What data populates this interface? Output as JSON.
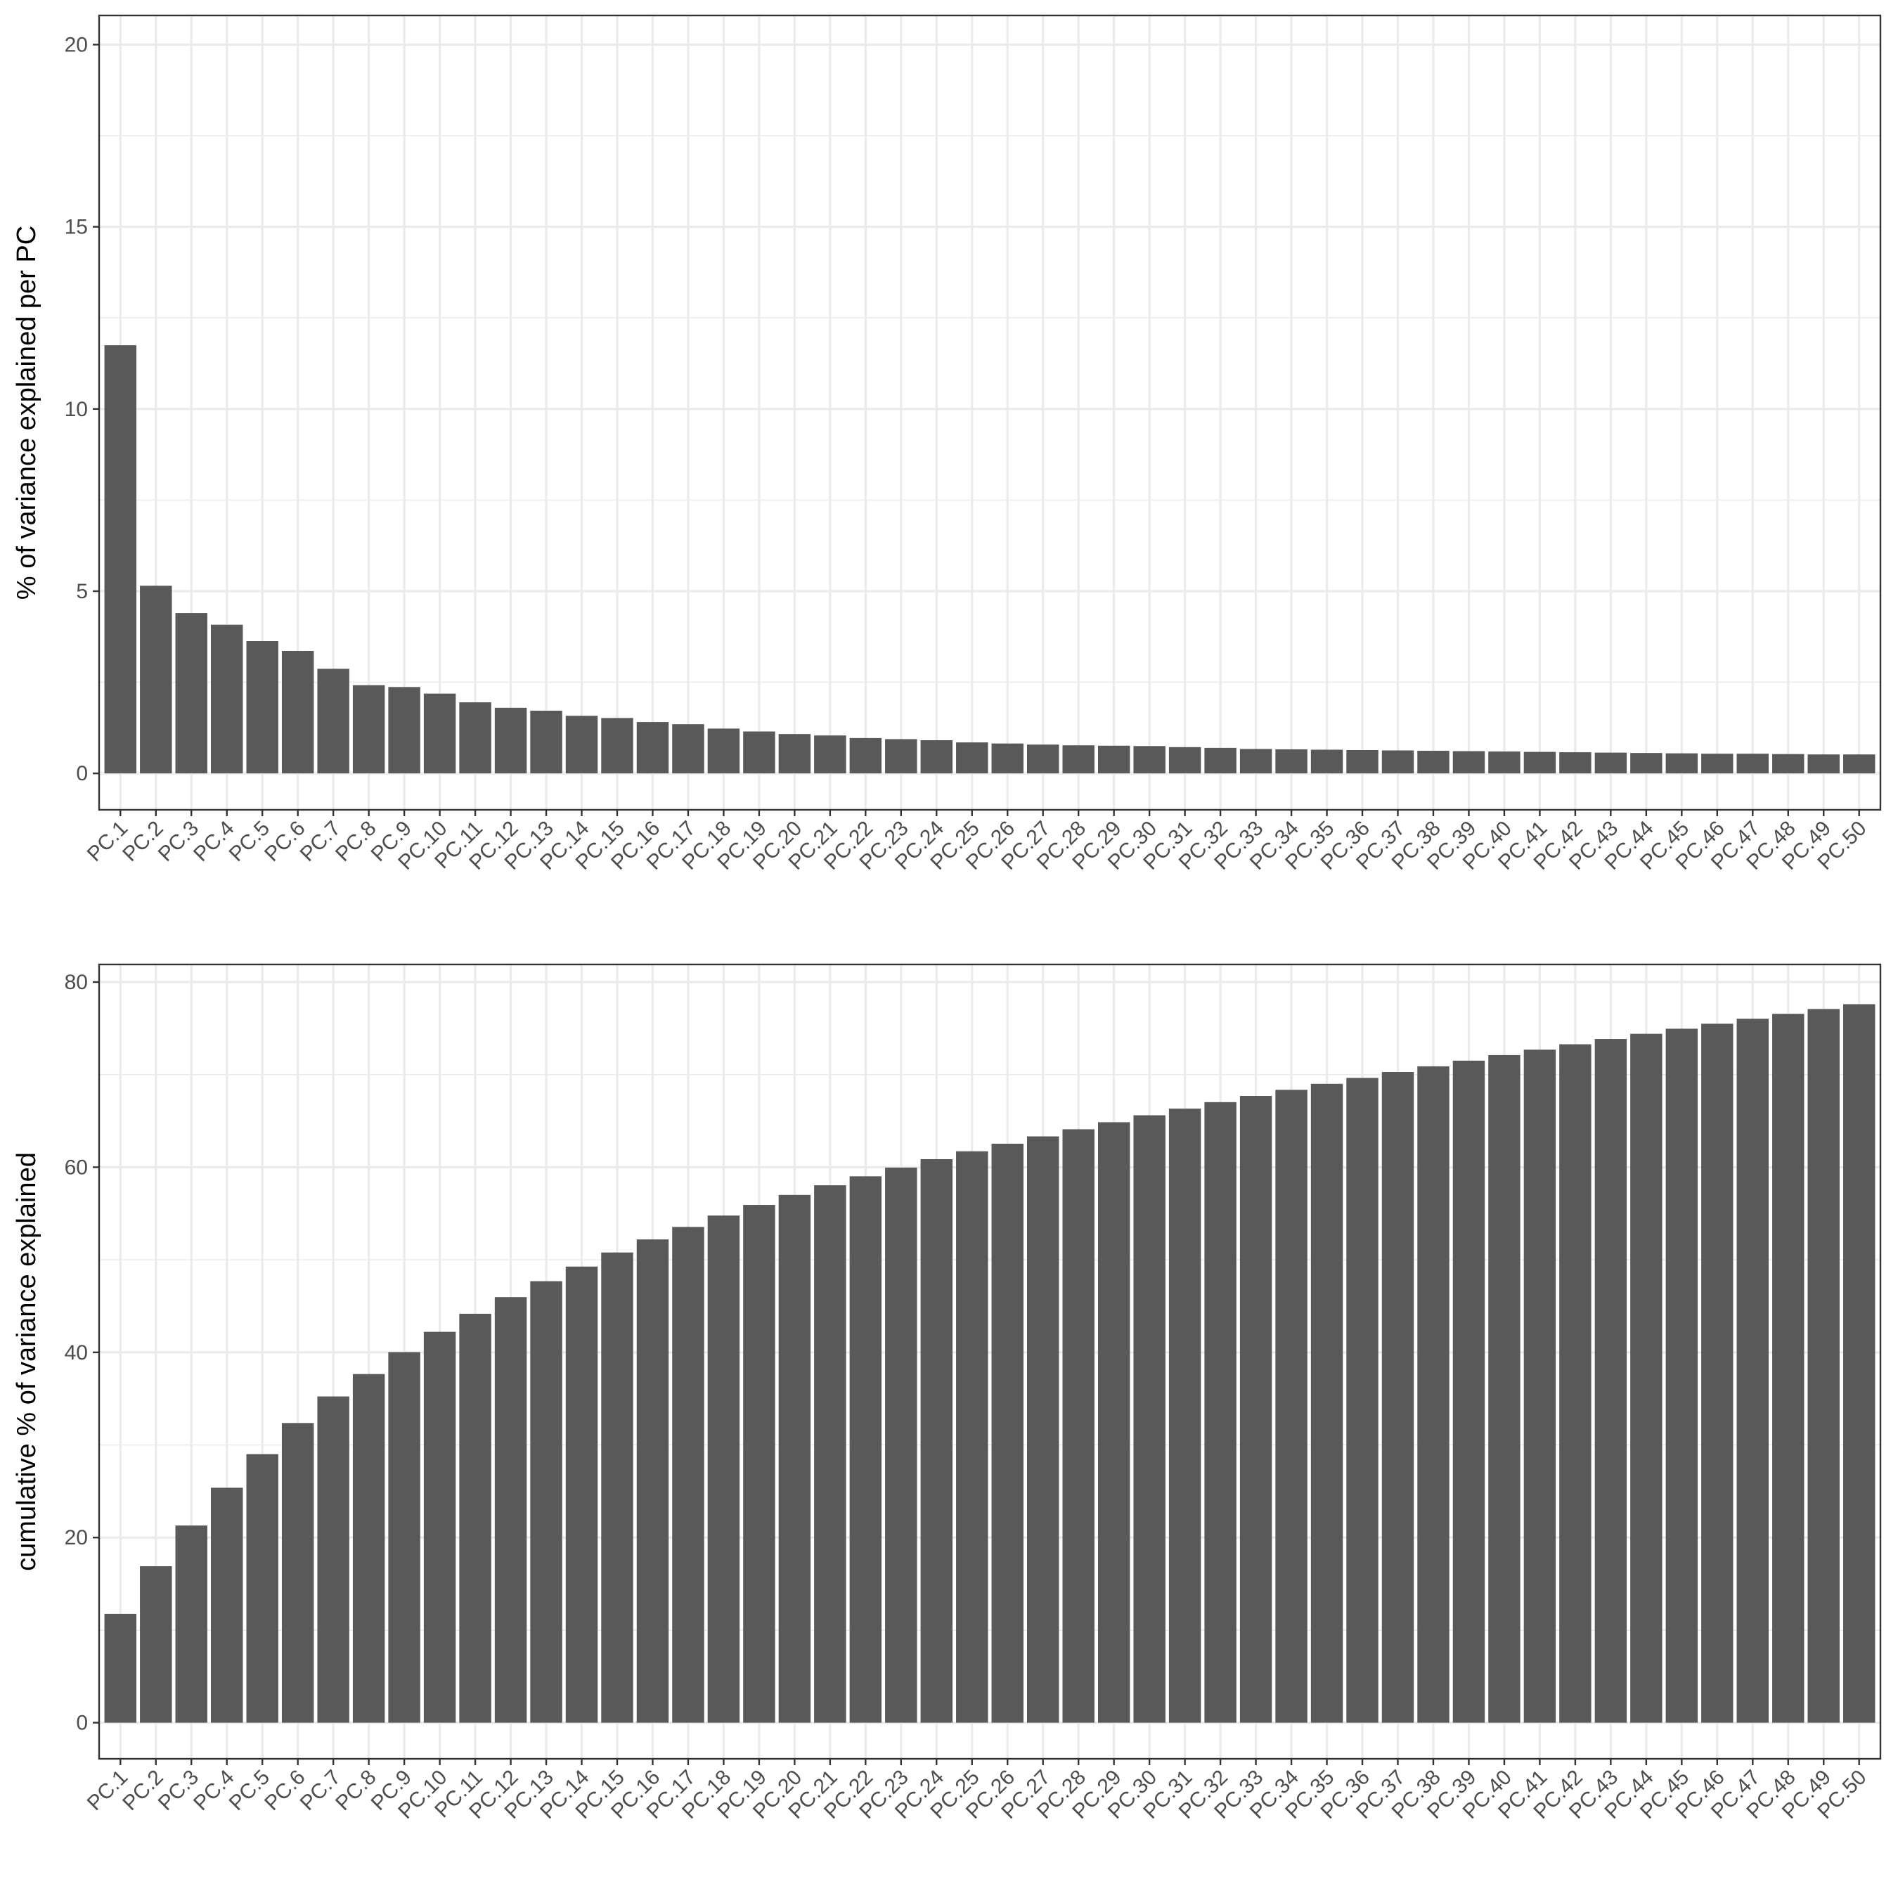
{
  "chart_data": [
    {
      "type": "bar",
      "title": "",
      "xlabel": "",
      "ylabel": "% of variance explained per PC",
      "ylim": [
        -1,
        20.8
      ],
      "yticks": [
        0,
        5,
        10,
        15,
        20
      ],
      "grid": true,
      "bar_color": "#595959",
      "categories": [
        "PC.1",
        "PC.2",
        "PC.3",
        "PC.4",
        "PC.5",
        "PC.6",
        "PC.7",
        "PC.8",
        "PC.9",
        "PC.10",
        "PC.11",
        "PC.12",
        "PC.13",
        "PC.14",
        "PC.15",
        "PC.16",
        "PC.17",
        "PC.18",
        "PC.19",
        "PC.20",
        "PC.21",
        "PC.22",
        "PC.23",
        "PC.24",
        "PC.25",
        "PC.26",
        "PC.27",
        "PC.28",
        "PC.29",
        "PC.30",
        "PC.31",
        "PC.32",
        "PC.33",
        "PC.34",
        "PC.35",
        "PC.36",
        "PC.37",
        "PC.38",
        "PC.39",
        "PC.40",
        "PC.41",
        "PC.42",
        "PC.43",
        "PC.44",
        "PC.45",
        "PC.46",
        "PC.47",
        "PC.48",
        "PC.49",
        "PC.50"
      ],
      "values": [
        11.75,
        5.15,
        4.4,
        4.08,
        3.63,
        3.36,
        2.87,
        2.42,
        2.37,
        2.19,
        1.95,
        1.8,
        1.72,
        1.58,
        1.52,
        1.41,
        1.35,
        1.23,
        1.15,
        1.08,
        1.04,
        0.97,
        0.94,
        0.91,
        0.85,
        0.82,
        0.79,
        0.77,
        0.76,
        0.75,
        0.72,
        0.7,
        0.67,
        0.66,
        0.65,
        0.64,
        0.63,
        0.62,
        0.61,
        0.6,
        0.59,
        0.58,
        0.57,
        0.56,
        0.55,
        0.54,
        0.54,
        0.53,
        0.52,
        0.52
      ]
    },
    {
      "type": "bar",
      "title": "",
      "xlabel": "",
      "ylabel": "cumulative % of variance explained",
      "ylim": [
        -3.9,
        81.9
      ],
      "yticks": [
        0,
        20,
        40,
        60,
        80
      ],
      "grid": true,
      "bar_color": "#595959",
      "categories": [
        "PC.1",
        "PC.2",
        "PC.3",
        "PC.4",
        "PC.5",
        "PC.6",
        "PC.7",
        "PC.8",
        "PC.9",
        "PC.10",
        "PC.11",
        "PC.12",
        "PC.13",
        "PC.14",
        "PC.15",
        "PC.16",
        "PC.17",
        "PC.18",
        "PC.19",
        "PC.20",
        "PC.21",
        "PC.22",
        "PC.23",
        "PC.24",
        "PC.25",
        "PC.26",
        "PC.27",
        "PC.28",
        "PC.29",
        "PC.30",
        "PC.31",
        "PC.32",
        "PC.33",
        "PC.34",
        "PC.35",
        "PC.36",
        "PC.37",
        "PC.38",
        "PC.39",
        "PC.40",
        "PC.41",
        "PC.42",
        "PC.43",
        "PC.44",
        "PC.45",
        "PC.46",
        "PC.47",
        "PC.48",
        "PC.49",
        "PC.50"
      ],
      "values": [
        11.75,
        16.9,
        21.3,
        25.38,
        29.01,
        32.37,
        35.24,
        37.66,
        40.03,
        42.22,
        44.17,
        45.97,
        47.69,
        49.27,
        50.79,
        52.2,
        53.55,
        54.78,
        55.93,
        57.01,
        58.05,
        59.02,
        59.96,
        60.87,
        61.72,
        62.54,
        63.33,
        64.1,
        64.86,
        65.61,
        66.33,
        67.03,
        67.7,
        68.36,
        69.01,
        69.65,
        70.28,
        70.9,
        71.51,
        72.11,
        72.7,
        73.28,
        73.85,
        74.41,
        74.96,
        75.5,
        76.04,
        76.57,
        77.09,
        77.61
      ]
    }
  ]
}
